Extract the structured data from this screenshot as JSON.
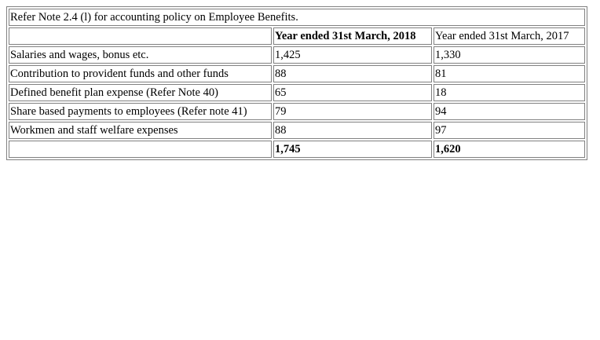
{
  "note": "Refer Note 2.4 (l) for accounting policy on Employee Benefits.",
  "columns": {
    "label": "",
    "year_2018": "Year ended 31st March, 2018",
    "year_2017": "Year ended 31st March, 2017"
  },
  "rows": [
    {
      "label": "Salaries and wages, bonus etc.",
      "y2018": "1,425",
      "y2017": "1,330"
    },
    {
      "label": "Contribution to provident funds and other funds",
      "y2018": "88",
      "y2017": "81"
    },
    {
      "label": "Defined benefit plan expense (Refer Note 40)",
      "y2018": "65",
      "y2017": "18"
    },
    {
      "label": "Share based payments to employees (Refer note 41)",
      "y2018": "79",
      "y2017": "94"
    },
    {
      "label": "Workmen and staff welfare expenses",
      "y2018": "88",
      "y2017": "97"
    }
  ],
  "total": {
    "label": "",
    "y2018": "1,745",
    "y2017": "1,620"
  }
}
